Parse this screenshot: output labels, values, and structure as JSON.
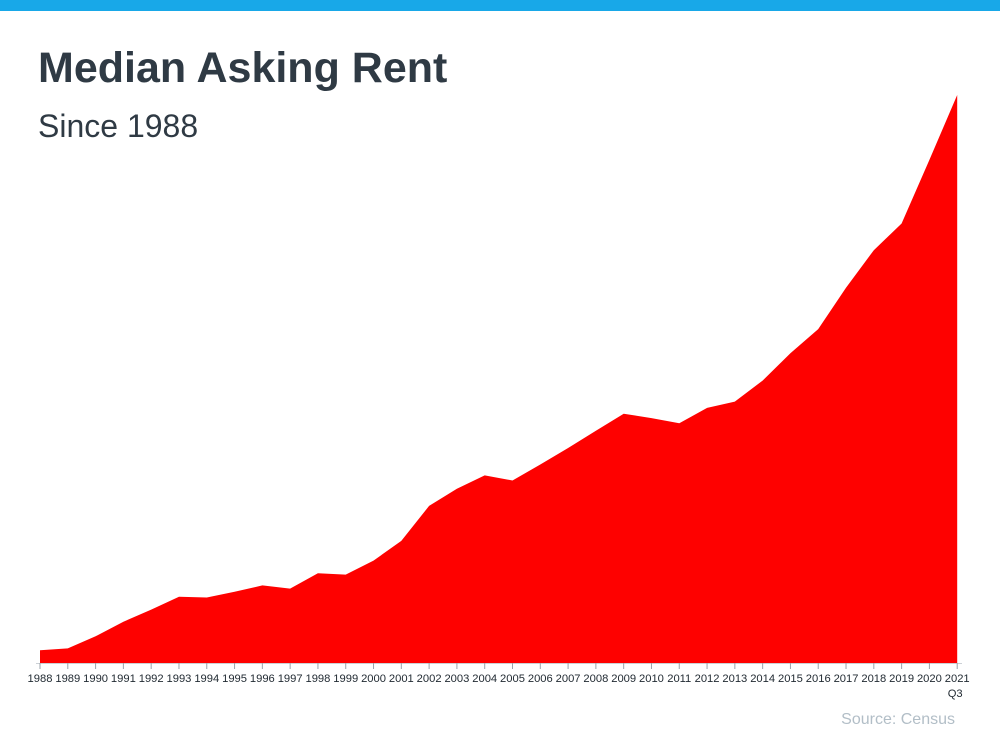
{
  "page": {
    "background_color": "#ffffff",
    "accent_bar_color": "#18a8e8"
  },
  "header": {
    "title": "Median Asking Rent",
    "subtitle": "Since 1988",
    "title_color": "#2f3a44",
    "subtitle_color": "#2f3a44"
  },
  "source": {
    "label": "Source: Census",
    "color": "#b2bec7"
  },
  "chart_data": {
    "type": "area",
    "title": "Median Asking Rent",
    "subtitle": "Since 1988",
    "x_tick_labels": [
      "1988",
      "1989",
      "1990",
      "1991",
      "1992",
      "1993",
      "1994",
      "1995",
      "1996",
      "1997",
      "1998",
      "1999",
      "2000",
      "2001",
      "2002",
      "2003",
      "2004",
      "2005",
      "2006",
      "2007",
      "2008",
      "2009",
      "2010",
      "2011",
      "2012",
      "2013",
      "2014",
      "2015",
      "2016",
      "2017",
      "2018",
      "2019",
      "2020",
      "2021"
    ],
    "last_tick_sublabel": "Q3",
    "series": [
      {
        "name": "Median asking rent (USD)",
        "values": [
          330,
          333,
          352,
          375,
          394,
          414,
          413,
          422,
          432,
          427,
          451,
          449,
          471,
          502,
          557,
          584,
          605,
          597,
          622,
          648,
          675,
          702,
          695,
          687,
          711,
          721,
          754,
          797,
          835,
          900,
          959,
          1001,
          1101,
          1203
        ]
      }
    ],
    "xlabel": "",
    "ylabel": "",
    "ylim": [
      310,
      1203
    ],
    "grid": false,
    "legend": "none",
    "y_axis_labels_shown": false,
    "area_color": "#fe0100",
    "axis_line_color": "#ccd1d6",
    "tick_color": "#9aa2aa",
    "tick_label_color": "#222b33"
  }
}
